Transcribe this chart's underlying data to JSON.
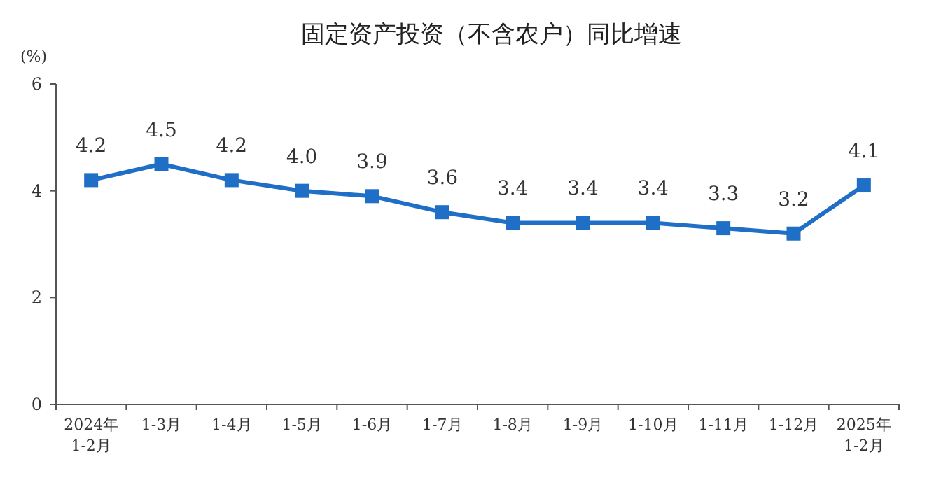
{
  "chart_data": {
    "type": "line",
    "title": "固定资产投资（不含农户）同比增速",
    "ylabel": "(%)",
    "categories": [
      "2024年\n1-2月",
      "1-3月",
      "1-4月",
      "1-5月",
      "1-6月",
      "1-7月",
      "1-8月",
      "1-9月",
      "1-10月",
      "1-11月",
      "1-12月",
      "2025年\n1-2月"
    ],
    "series": [
      {
        "color": "#1f6fc6",
        "values": [
          4.2,
          4.5,
          4.2,
          4.0,
          3.9,
          3.6,
          3.4,
          3.4,
          3.4,
          3.3,
          3.2,
          4.1
        ]
      }
    ],
    "value_labels": [
      "4.2",
      "4.5",
      "4.2",
      "4.0",
      "3.9",
      "3.6",
      "3.4",
      "3.4",
      "3.4",
      "3.3",
      "3.2",
      "4.1"
    ],
    "ylim": [
      0,
      6
    ],
    "yticks": [
      0,
      2,
      4,
      6
    ],
    "marker": "square"
  }
}
